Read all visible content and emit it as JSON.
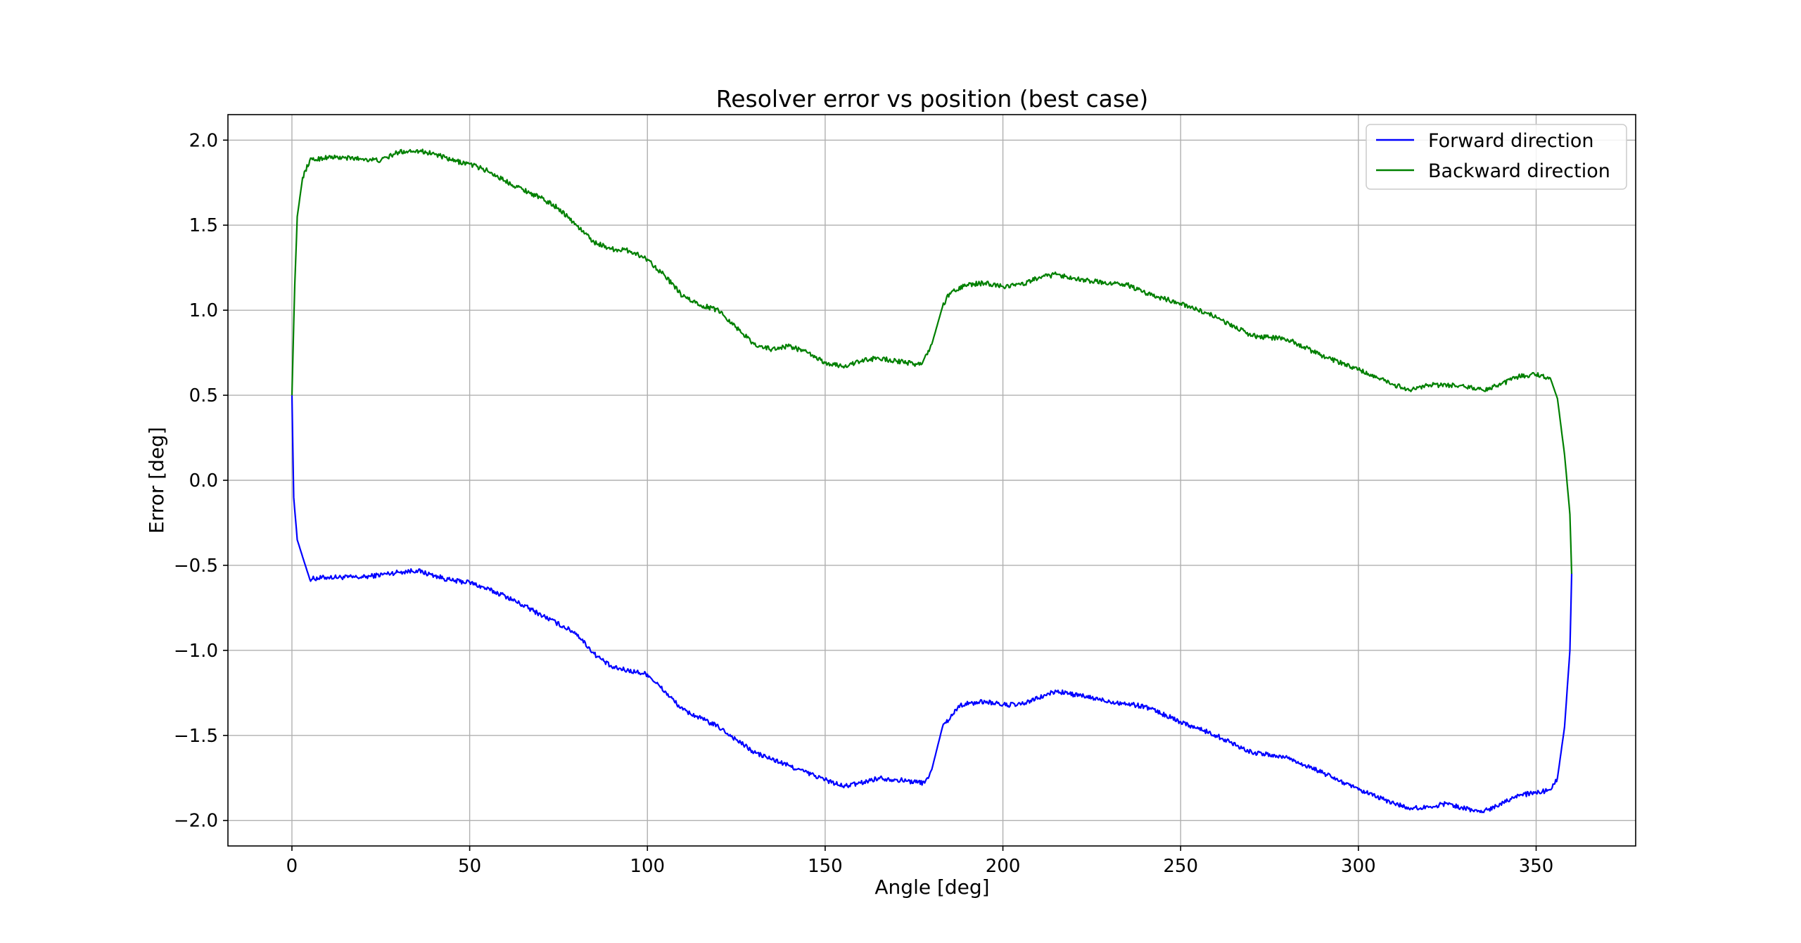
{
  "chart_data": {
    "type": "line",
    "title": "Resolver error vs position (best case)",
    "xlabel": "Angle [deg]",
    "ylabel": "Error [deg]",
    "xlim": [
      -18,
      378
    ],
    "ylim": [
      -2.15,
      2.15
    ],
    "xticks": [
      0,
      50,
      100,
      150,
      200,
      250,
      300,
      350
    ],
    "xtick_labels": [
      "0",
      "50",
      "100",
      "150",
      "200",
      "250",
      "300",
      "350"
    ],
    "yticks": [
      2.0,
      1.5,
      1.0,
      0.5,
      0.0,
      -0.5,
      -1.0,
      -1.5,
      -2.0
    ],
    "ytick_labels": [
      "2.0",
      "1.5",
      "1.0",
      "0.5",
      "0.0",
      "−0.5",
      "−1.0",
      "−1.5",
      "−2.0"
    ],
    "grid": true,
    "legend_position": "top-right",
    "series": [
      {
        "name": "Forward direction",
        "color": "#0000ff",
        "points": [
          [
            0,
            0.5
          ],
          [
            0.5,
            -0.1
          ],
          [
            1.5,
            -0.35
          ],
          [
            3,
            -0.45
          ],
          [
            5,
            -0.58
          ],
          [
            10,
            -0.57
          ],
          [
            20,
            -0.57
          ],
          [
            30,
            -0.54
          ],
          [
            35,
            -0.53
          ],
          [
            40,
            -0.56
          ],
          [
            45,
            -0.59
          ],
          [
            50,
            -0.6
          ],
          [
            60,
            -0.68
          ],
          [
            70,
            -0.79
          ],
          [
            80,
            -0.9
          ],
          [
            85,
            -1.02
          ],
          [
            90,
            -1.1
          ],
          [
            100,
            -1.14
          ],
          [
            110,
            -1.35
          ],
          [
            120,
            -1.45
          ],
          [
            130,
            -1.6
          ],
          [
            140,
            -1.68
          ],
          [
            150,
            -1.76
          ],
          [
            155,
            -1.8
          ],
          [
            160,
            -1.78
          ],
          [
            165,
            -1.75
          ],
          [
            170,
            -1.76
          ],
          [
            178,
            -1.78
          ],
          [
            180,
            -1.7
          ],
          [
            183,
            -1.45
          ],
          [
            188,
            -1.32
          ],
          [
            195,
            -1.3
          ],
          [
            200,
            -1.32
          ],
          [
            205,
            -1.32
          ],
          [
            210,
            -1.28
          ],
          [
            215,
            -1.24
          ],
          [
            220,
            -1.26
          ],
          [
            230,
            -1.3
          ],
          [
            240,
            -1.33
          ],
          [
            250,
            -1.42
          ],
          [
            260,
            -1.5
          ],
          [
            270,
            -1.6
          ],
          [
            280,
            -1.63
          ],
          [
            290,
            -1.72
          ],
          [
            300,
            -1.82
          ],
          [
            310,
            -1.9
          ],
          [
            315,
            -1.93
          ],
          [
            320,
            -1.92
          ],
          [
            325,
            -1.9
          ],
          [
            330,
            -1.93
          ],
          [
            335,
            -1.95
          ],
          [
            340,
            -1.9
          ],
          [
            345,
            -1.85
          ],
          [
            350,
            -1.84
          ],
          [
            354,
            -1.82
          ],
          [
            356,
            -1.75
          ],
          [
            358,
            -1.45
          ],
          [
            359.5,
            -1.0
          ],
          [
            360,
            -0.55
          ]
        ]
      },
      {
        "name": "Backward direction",
        "color": "#008000",
        "points": [
          [
            0,
            0.5
          ],
          [
            0.8,
            1.15
          ],
          [
            1.5,
            1.55
          ],
          [
            3,
            1.78
          ],
          [
            5,
            1.88
          ],
          [
            10,
            1.9
          ],
          [
            20,
            1.89
          ],
          [
            25,
            1.88
          ],
          [
            30,
            1.93
          ],
          [
            35,
            1.94
          ],
          [
            40,
            1.92
          ],
          [
            45,
            1.88
          ],
          [
            50,
            1.86
          ],
          [
            55,
            1.82
          ],
          [
            60,
            1.76
          ],
          [
            70,
            1.66
          ],
          [
            75,
            1.6
          ],
          [
            80,
            1.5
          ],
          [
            85,
            1.4
          ],
          [
            90,
            1.36
          ],
          [
            95,
            1.35
          ],
          [
            100,
            1.3
          ],
          [
            105,
            1.2
          ],
          [
            110,
            1.08
          ],
          [
            115,
            1.03
          ],
          [
            120,
            1.0
          ],
          [
            125,
            0.9
          ],
          [
            130,
            0.8
          ],
          [
            135,
            0.77
          ],
          [
            140,
            0.79
          ],
          [
            145,
            0.75
          ],
          [
            150,
            0.69
          ],
          [
            155,
            0.67
          ],
          [
            160,
            0.7
          ],
          [
            165,
            0.72
          ],
          [
            170,
            0.7
          ],
          [
            177,
            0.68
          ],
          [
            180,
            0.8
          ],
          [
            183,
            1.02
          ],
          [
            185,
            1.1
          ],
          [
            190,
            1.15
          ],
          [
            195,
            1.16
          ],
          [
            200,
            1.14
          ],
          [
            205,
            1.15
          ],
          [
            210,
            1.19
          ],
          [
            215,
            1.21
          ],
          [
            220,
            1.19
          ],
          [
            225,
            1.17
          ],
          [
            230,
            1.16
          ],
          [
            235,
            1.15
          ],
          [
            240,
            1.1
          ],
          [
            250,
            1.04
          ],
          [
            260,
            0.96
          ],
          [
            270,
            0.85
          ],
          [
            275,
            0.84
          ],
          [
            280,
            0.83
          ],
          [
            290,
            0.73
          ],
          [
            300,
            0.65
          ],
          [
            310,
            0.56
          ],
          [
            315,
            0.53
          ],
          [
            320,
            0.56
          ],
          [
            325,
            0.56
          ],
          [
            330,
            0.55
          ],
          [
            335,
            0.53
          ],
          [
            340,
            0.56
          ],
          [
            345,
            0.61
          ],
          [
            350,
            0.62
          ],
          [
            354,
            0.6
          ],
          [
            356,
            0.48
          ],
          [
            358,
            0.15
          ],
          [
            359.5,
            -0.2
          ],
          [
            360,
            -0.55
          ]
        ]
      }
    ]
  }
}
